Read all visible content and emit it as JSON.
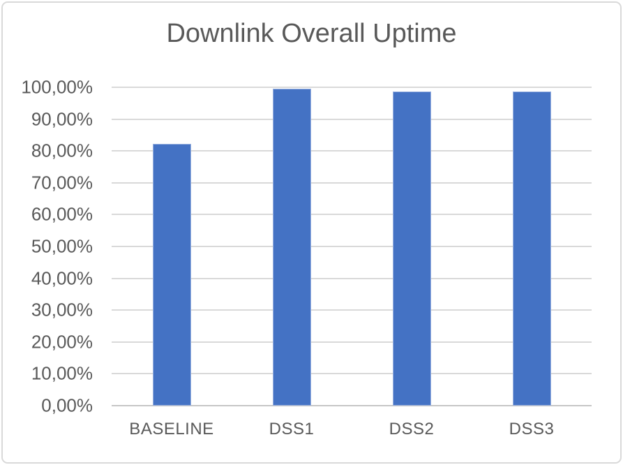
{
  "window": {
    "background": "#ffffff",
    "border_color": "#d9d9d9"
  },
  "chart_data": {
    "type": "bar",
    "title": "Downlink Overall Uptime",
    "categories": [
      "BASELINE",
      "DSS1",
      "DSS2",
      "DSS3"
    ],
    "values": [
      82.2,
      99.5,
      98.7,
      98.7
    ],
    "unit": "%",
    "xlabel": "",
    "ylabel": "",
    "ylim": [
      0,
      100
    ],
    "ytick_step": 10,
    "ytick_labels": [
      "0,00%",
      "10,00%",
      "20,00%",
      "30,00%",
      "40,00%",
      "50,00%",
      "60,00%",
      "70,00%",
      "80,00%",
      "90,00%",
      "100,00%"
    ],
    "decimal_separator": ",",
    "grid": true,
    "legend_position": "none",
    "bar_color": "#4472C4",
    "bar_edge_color": "#9fb5e1",
    "gridline_color": "#d9d9d9",
    "axis_line_color": "#c6c6c6",
    "text_color": "#595959",
    "title_color": "#595959"
  }
}
